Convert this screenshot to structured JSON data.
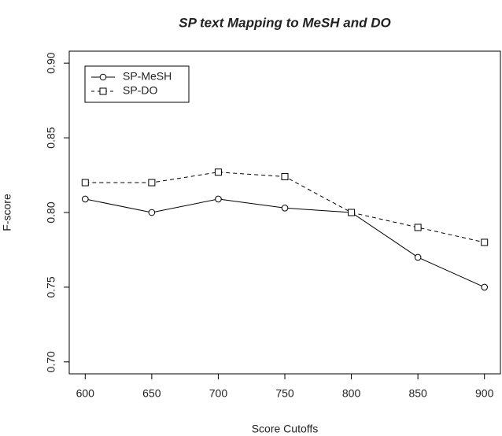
{
  "chart_data": {
    "type": "line",
    "title": "SP text Mapping to MeSH and DO",
    "x_label": "Score Cutoffs",
    "y_label": "F-score",
    "x": [
      600,
      650,
      700,
      750,
      800,
      850,
      900
    ],
    "series": [
      {
        "name": "SP-MeSH",
        "color": "#000000",
        "linestyle": "solid",
        "marker": "circle",
        "values": [
          0.809,
          0.8,
          0.809,
          0.803,
          0.8,
          0.77,
          0.75
        ]
      },
      {
        "name": "SP-DO",
        "color": "#000000",
        "linestyle": "dashed",
        "marker": "square",
        "values": [
          0.82,
          0.82,
          0.827,
          0.824,
          0.8,
          0.79,
          0.78
        ]
      }
    ],
    "xlim": [
      588,
      912
    ],
    "xticks": [
      600,
      650,
      700,
      750,
      800,
      850,
      900
    ],
    "ylim": [
      0.692,
      0.908
    ],
    "yticks": [
      {
        "value": 0.7,
        "label": "0.70"
      },
      {
        "value": 0.75,
        "label": "0.75"
      },
      {
        "value": 0.8,
        "label": "0.80"
      },
      {
        "value": 0.85,
        "label": "0.85"
      },
      {
        "value": 0.9,
        "label": "0.90"
      }
    ],
    "legend": "topleft",
    "grid": false
  }
}
